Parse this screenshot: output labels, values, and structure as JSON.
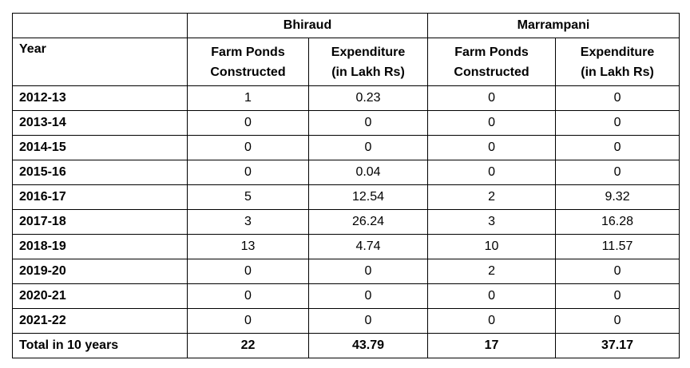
{
  "groups": [
    "Bhiraud",
    "Marrampani"
  ],
  "headers": {
    "year": "Year",
    "ponds_line1": "Farm Ponds",
    "ponds_line2": "Constructed",
    "exp_line1": "Expenditure",
    "exp_line2": "(in Lakh Rs)"
  },
  "rows": [
    {
      "year": "2012-13",
      "b_ponds": "1",
      "b_exp": "0.23",
      "m_ponds": "0",
      "m_exp": "0"
    },
    {
      "year": "2013-14",
      "b_ponds": "0",
      "b_exp": "0",
      "m_ponds": "0",
      "m_exp": "0"
    },
    {
      "year": "2014-15",
      "b_ponds": "0",
      "b_exp": "0",
      "m_ponds": "0",
      "m_exp": "0"
    },
    {
      "year": "2015-16",
      "b_ponds": "0",
      "b_exp": "0.04",
      "m_ponds": "0",
      "m_exp": "0"
    },
    {
      "year": "2016-17",
      "b_ponds": "5",
      "b_exp": "12.54",
      "m_ponds": "2",
      "m_exp": "9.32"
    },
    {
      "year": "2017-18",
      "b_ponds": "3",
      "b_exp": "26.24",
      "m_ponds": "3",
      "m_exp": "16.28"
    },
    {
      "year": "2018-19",
      "b_ponds": "13",
      "b_exp": "4.74",
      "m_ponds": "10",
      "m_exp": "11.57"
    },
    {
      "year": "2019-20",
      "b_ponds": "0",
      "b_exp": "0",
      "m_ponds": "2",
      "m_exp": "0"
    },
    {
      "year": "2020-21",
      "b_ponds": "0",
      "b_exp": "0",
      "m_ponds": "0",
      "m_exp": "0"
    },
    {
      "year": "2021-22",
      "b_ponds": "0",
      "b_exp": "0",
      "m_ponds": "0",
      "m_exp": "0"
    }
  ],
  "total": {
    "label": "Total in 10 years",
    "b_ponds": "22",
    "b_exp": "43.79",
    "m_ponds": "17",
    "m_exp": "37.17"
  }
}
